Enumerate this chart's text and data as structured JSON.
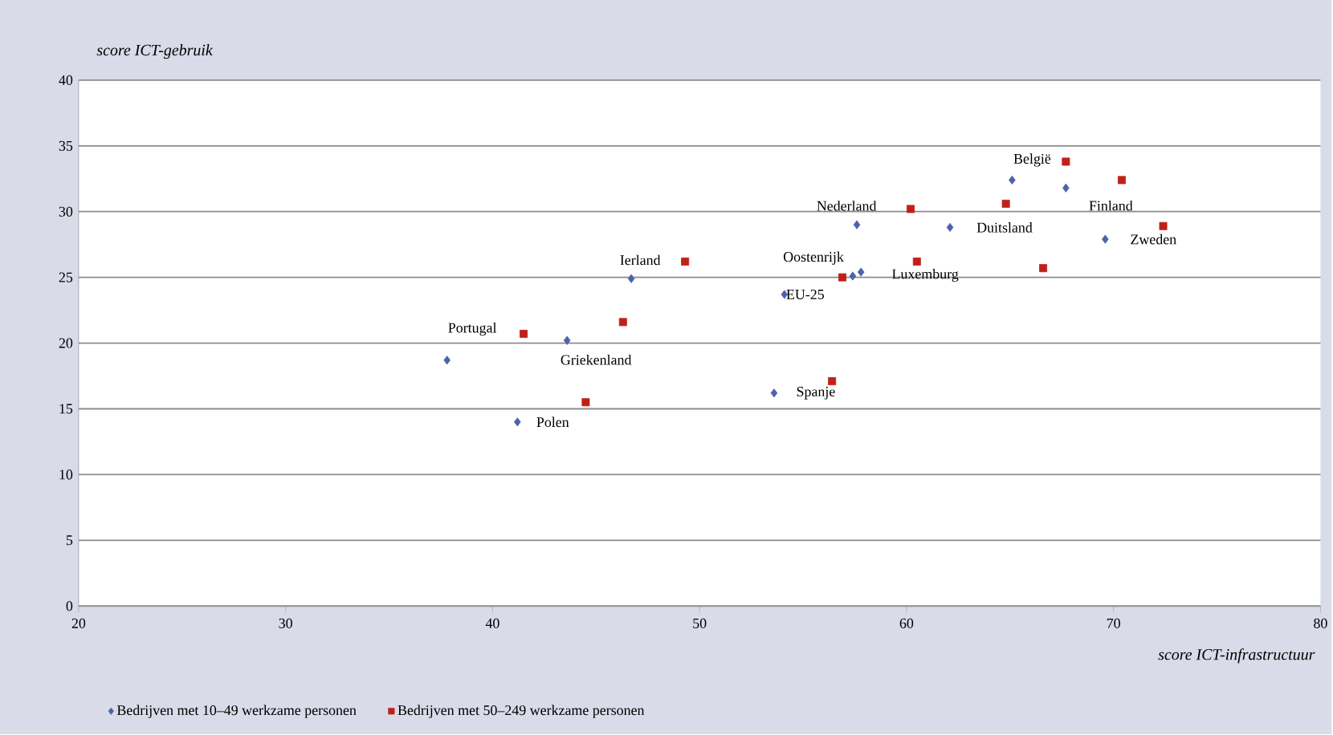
{
  "chart_data": {
    "type": "scatter",
    "xlabel": "score ICT-infrastructuur",
    "ylabel": "score ICT-gebruik",
    "xlim": [
      20,
      80
    ],
    "xticks": [
      20,
      30,
      40,
      50,
      60,
      70,
      80
    ],
    "ylim": [
      0,
      40
    ],
    "yticks": [
      0,
      5,
      10,
      15,
      20,
      25,
      30,
      35,
      40
    ],
    "grid": "y",
    "legend": "bottom",
    "series": [
      {
        "name": "Bedrijven met 10–49 werkzame personen",
        "color": "#4a64a8",
        "marker": "diamond",
        "x": [
          37.8,
          43.6,
          41.2,
          46.7,
          54.1,
          53.6,
          57.4,
          57.8,
          57.6,
          62.1,
          65.1,
          67.7,
          69.6
        ],
        "values": [
          18.7,
          20.2,
          14.0,
          24.9,
          23.7,
          16.2,
          25.1,
          25.4,
          29.0,
          28.8,
          32.4,
          31.8,
          27.9
        ]
      },
      {
        "name": "Bedrijven met 50–249 werkzame personen",
        "color": "#c0201a",
        "marker": "square",
        "x": [
          41.5,
          46.3,
          49.3,
          44.5,
          56.4,
          56.9,
          60.5,
          60.2,
          64.8,
          66.6,
          67.7,
          70.4,
          72.4
        ],
        "values": [
          20.7,
          21.6,
          26.2,
          15.5,
          17.1,
          25.0,
          26.2,
          30.2,
          30.6,
          25.7,
          33.8,
          32.4,
          28.9
        ]
      }
    ],
    "annotations": [
      {
        "text": "Portugal",
        "x": 41.5,
        "y": 20.7
      },
      {
        "text": "Griekenland",
        "x": 43.6,
        "y": 20.2
      },
      {
        "text": "Polen",
        "x": 41.2,
        "y": 14.0
      },
      {
        "text": "Ierland",
        "x": 49.3,
        "y": 26.2
      },
      {
        "text": "EU-25",
        "x": 54.1,
        "y": 23.7
      },
      {
        "text": "Spanje",
        "x": 53.6,
        "y": 16.2
      },
      {
        "text": "Oostenrijk",
        "x": 56.9,
        "y": 25.0
      },
      {
        "text": "Luxemburg",
        "x": 57.8,
        "y": 25.4
      },
      {
        "text": "Nederland",
        "x": 60.2,
        "y": 30.2
      },
      {
        "text": "Duitsland",
        "x": 62.1,
        "y": 28.8
      },
      {
        "text": "België",
        "x": 67.7,
        "y": 33.8
      },
      {
        "text": "Finland",
        "x": 67.7,
        "y": 31.8
      },
      {
        "text": "Zweden",
        "x": 69.6,
        "y": 27.9
      }
    ]
  }
}
